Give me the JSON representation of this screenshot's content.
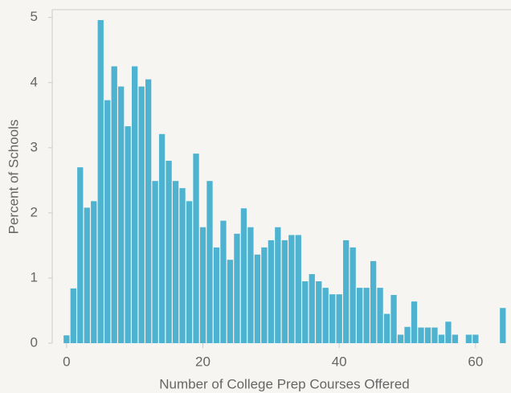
{
  "chart_data": {
    "type": "histogram",
    "xlabel": "Number of College Prep Courses Offered",
    "ylabel": "Percent of Schools",
    "bins": [
      -0.5,
      0.5,
      1.5,
      2.5,
      3.5,
      4.5,
      5.5,
      6.5,
      7.5,
      8.5,
      9.5,
      10.5,
      11.5,
      12.5,
      13.5,
      14.5,
      15.5,
      16.5,
      17.5,
      18.5,
      19.5,
      20.5,
      21.5,
      22.5,
      23.5,
      24.5,
      25.5,
      26.5,
      27.5,
      28.5,
      29.5,
      30.5,
      31.5,
      32.5,
      33.5,
      34.5,
      35.5,
      36.5,
      37.5,
      38.5,
      39.5,
      40.5,
      41.5,
      42.5,
      43.5,
      44.5,
      45.5,
      46.5,
      47.5,
      48.5,
      49.5,
      50.5,
      51.5,
      52.5,
      53.5,
      54.5,
      55.5,
      56.5,
      57.5,
      58.5,
      59.5,
      60.5,
      61.5,
      62.5,
      63.5,
      64.5
    ],
    "values": [
      0.12,
      0.84,
      2.7,
      2.08,
      2.18,
      4.96,
      3.73,
      4.25,
      3.94,
      3.33,
      4.25,
      3.94,
      4.05,
      2.49,
      3.21,
      2.8,
      2.49,
      2.38,
      2.18,
      2.91,
      1.78,
      2.49,
      1.47,
      1.88,
      1.28,
      1.68,
      2.07,
      1.78,
      1.36,
      1.47,
      1.58,
      1.78,
      1.58,
      1.66,
      1.66,
      0.95,
      1.06,
      0.95,
      0.85,
      0.75,
      0.75,
      1.58,
      1.47,
      0.85,
      0.85,
      1.26,
      0.85,
      0.45,
      0.74,
      0.13,
      0.25,
      0.64,
      0.24,
      0.24,
      0.24,
      0.13,
      0.33,
      0.13,
      0,
      0.13,
      0.13,
      0,
      0,
      0,
      0.54
    ],
    "color": "#4db3d0",
    "xlim": [
      -2.1,
      65.2
    ],
    "ylim": [
      0,
      5.12
    ],
    "xticks": [
      0,
      20,
      40,
      60
    ],
    "yticks": [
      0,
      1,
      2,
      3,
      4,
      5
    ]
  }
}
